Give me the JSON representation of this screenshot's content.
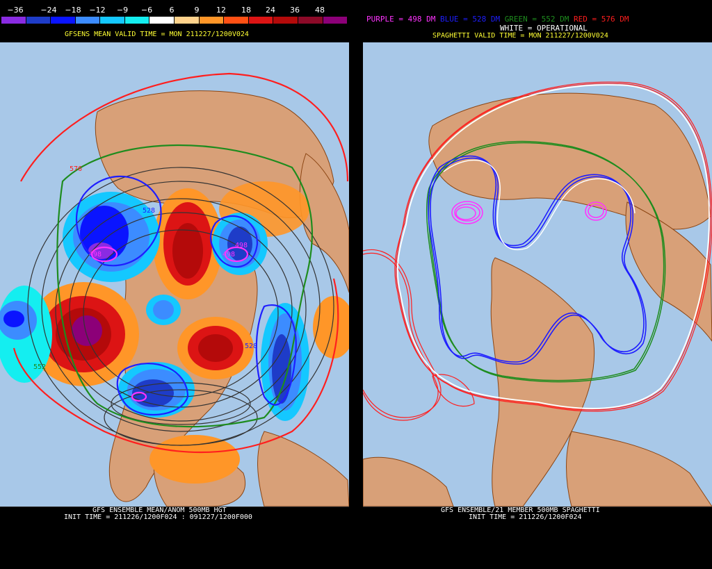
{
  "left": {
    "colorbar_ticks": [
      "−36",
      "−24",
      "−18",
      "−12",
      "−9",
      "−6",
      "6",
      "9",
      "12",
      "18",
      "24",
      "36",
      "48"
    ],
    "colorbar_colors": [
      "#8a2be2",
      "#1e3cc8",
      "#0a14ff",
      "#3c8cff",
      "#14c8ff",
      "#14eef0",
      "#ffffff",
      "#ffd28c",
      "#ff9628",
      "#ff5014",
      "#dc1414",
      "#b40a0a",
      "#8c0a28",
      "#8c0078"
    ],
    "subtitle": "GFSENS MEAN VALID TIME = MON 211227/1200V024",
    "contour_labels": [
      "576",
      "528",
      "498",
      "498",
      "498",
      "528",
      "552"
    ],
    "footer_line1": "GFS ENSEMBLE MEAN/ANOM 500MB HGT",
    "footer_line2": "INIT TIME = 211226/1200F024 : 091227/1200F000"
  },
  "right": {
    "legend_purple": "PURPLE = 498 DM",
    "legend_blue": "BLUE = 528 DM",
    "legend_green": "GREEN = 552 DM",
    "legend_red": "RED = 576 DM",
    "legend_white": "WHITE = OPERATIONAL",
    "subtitle": "SPAGHETTI VALID TIME = MON 211227/1200V024",
    "footer_line1": "GFS ENSEMBLE/21 MEMBER 500MB SPAGHETTI",
    "footer_line2": "INIT TIME = 211226/1200F024"
  },
  "colors": {
    "ocean": "#a8c8e8",
    "land": "#d8a078",
    "coast": "#8b4513",
    "purple": "#ff33ff",
    "blue": "#1e1eff",
    "green": "#1e8c1e",
    "red": "#ff1e1e"
  }
}
